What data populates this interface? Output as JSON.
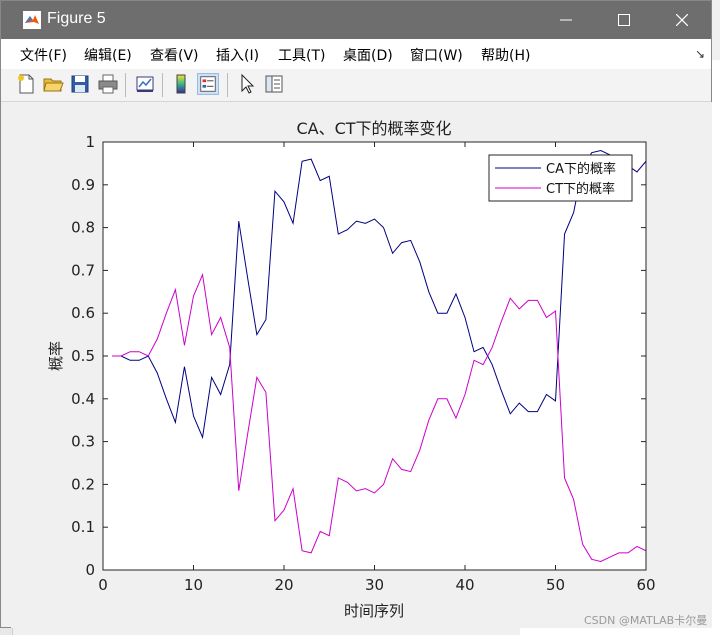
{
  "window": {
    "title": "Figure 5"
  },
  "menu": {
    "items": [
      "文件(F)",
      "编辑(E)",
      "查看(V)",
      "插入(I)",
      "工具(T)",
      "桌面(D)",
      "窗口(W)",
      "帮助(H)"
    ]
  },
  "toolbar": {
    "icons": [
      "new-file-icon",
      "open-folder-icon",
      "save-icon",
      "print-icon",
      "link-plot-icon",
      "colorbar-icon",
      "legend-icon",
      "pointer-icon",
      "property-inspector-icon"
    ]
  },
  "watermark": "CSDN @MATLAB卡尔曼",
  "chart_data": {
    "type": "line",
    "title": "CA、CT下的概率变化",
    "xlabel": "时间序列",
    "ylabel": "概率",
    "xlim": [
      0,
      60
    ],
    "ylim": [
      0,
      1
    ],
    "xticks": [
      0,
      10,
      20,
      30,
      40,
      50,
      60
    ],
    "yticks": [
      0,
      0.1,
      0.2,
      0.3,
      0.4,
      0.5,
      0.6,
      0.7,
      0.8,
      0.9,
      1
    ],
    "grid": false,
    "legend": "top-right",
    "x": [
      1,
      2,
      3,
      4,
      5,
      6,
      7,
      8,
      9,
      10,
      11,
      12,
      13,
      14,
      15,
      16,
      17,
      18,
      19,
      20,
      21,
      22,
      23,
      24,
      25,
      26,
      27,
      28,
      29,
      30,
      31,
      32,
      33,
      34,
      35,
      36,
      37,
      38,
      39,
      40,
      41,
      42,
      43,
      44,
      45,
      46,
      47,
      48,
      49,
      50,
      51,
      52,
      53,
      54,
      55,
      56,
      57,
      58,
      59,
      60
    ],
    "series": [
      {
        "name": "CA下的概率",
        "color": "#000080",
        "values": [
          0.5,
          0.5,
          0.49,
          0.49,
          0.5,
          0.46,
          0.4,
          0.345,
          0.475,
          0.36,
          0.31,
          0.45,
          0.41,
          0.48,
          0.815,
          0.68,
          0.55,
          0.585,
          0.885,
          0.86,
          0.81,
          0.955,
          0.96,
          0.91,
          0.92,
          0.785,
          0.795,
          0.815,
          0.81,
          0.82,
          0.8,
          0.74,
          0.765,
          0.77,
          0.72,
          0.65,
          0.6,
          0.6,
          0.645,
          0.59,
          0.51,
          0.52,
          0.48,
          0.42,
          0.365,
          0.39,
          0.37,
          0.37,
          0.41,
          0.395,
          0.785,
          0.835,
          0.94,
          0.975,
          0.98,
          0.97,
          0.96,
          0.945,
          0.93,
          0.955
        ]
      },
      {
        "name": "CT下的概率",
        "color": "#cc00cc",
        "values": [
          0.5,
          0.5,
          0.51,
          0.51,
          0.5,
          0.54,
          0.6,
          0.655,
          0.525,
          0.64,
          0.69,
          0.55,
          0.59,
          0.52,
          0.185,
          0.32,
          0.45,
          0.415,
          0.115,
          0.14,
          0.19,
          0.045,
          0.04,
          0.09,
          0.08,
          0.215,
          0.205,
          0.185,
          0.19,
          0.18,
          0.2,
          0.26,
          0.235,
          0.23,
          0.28,
          0.35,
          0.4,
          0.4,
          0.355,
          0.41,
          0.49,
          0.48,
          0.52,
          0.58,
          0.635,
          0.61,
          0.63,
          0.63,
          0.59,
          0.605,
          0.215,
          0.165,
          0.06,
          0.025,
          0.02,
          0.03,
          0.04,
          0.04,
          0.055,
          0.045
        ]
      }
    ]
  }
}
